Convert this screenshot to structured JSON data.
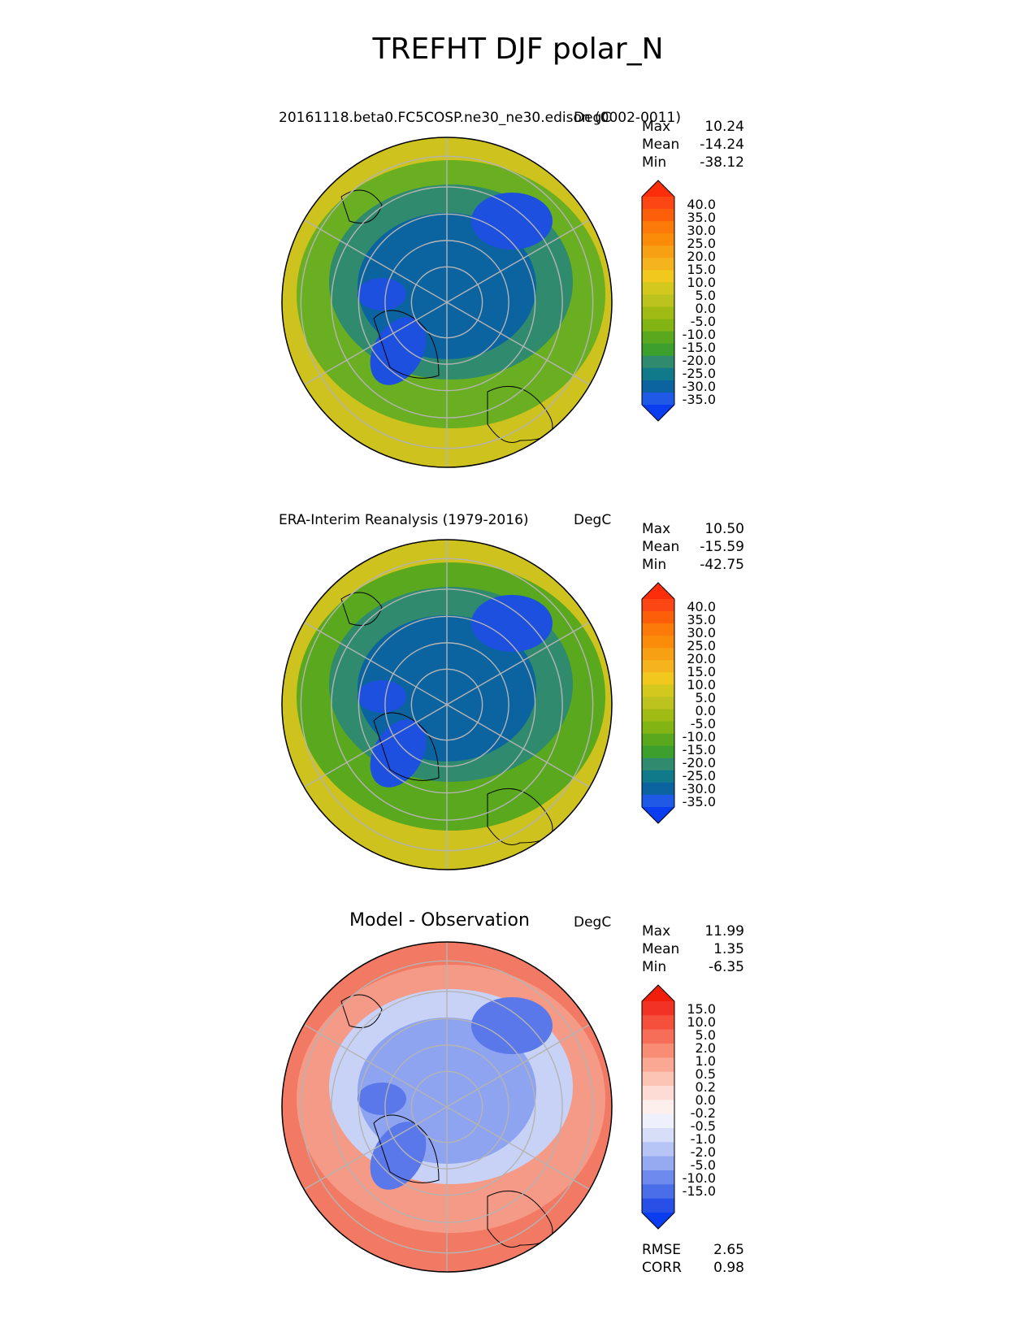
{
  "title": "TREFHT DJF polar_N",
  "panels": [
    {
      "id": "test",
      "title": "20161118.beta0.FC5COSP.ne30_ne30.edison (0002-0011)",
      "units": "DegC",
      "stats": [
        {
          "label": "Max",
          "value": "10.24"
        },
        {
          "label": "Mean",
          "value": "-14.24"
        },
        {
          "label": "Min",
          "value": "-38.12"
        }
      ],
      "colorbar": {
        "labels": [
          "40.0",
          "35.0",
          "30.0",
          "25.0",
          "20.0",
          "15.0",
          "10.0",
          "5.0",
          "0.0",
          "-5.0",
          "-10.0",
          "-15.0",
          "-20.0",
          "-25.0",
          "-30.0",
          "-35.0"
        ],
        "colors": [
          "#0a3cf0",
          "#1e5ae6",
          "#0b63a0",
          "#117a8a",
          "#2f8a6e",
          "#3ba02c",
          "#5aa81e",
          "#82b414",
          "#a0bc14",
          "#bcc21e",
          "#d2c81e",
          "#f0c81e",
          "#f5b41e",
          "#f8a014",
          "#fa8c0a",
          "#fc7a0a",
          "#fc5f0a",
          "#fc4614",
          "#fc2d0a"
        ]
      },
      "map_colors": {
        "outer": "#cdc21e",
        "mid": "#6aae22",
        "inner": "#2f8a6e",
        "core": "#0b63a0",
        "cold": "#1e50e0"
      }
    },
    {
      "id": "reference",
      "title": "ERA-Interim Reanalysis (1979-2016)",
      "units": "DegC",
      "stats": [
        {
          "label": "Max",
          "value": "10.50"
        },
        {
          "label": "Mean",
          "value": "-15.59"
        },
        {
          "label": "Min",
          "value": "-42.75"
        }
      ],
      "colorbar": {
        "labels": [
          "40.0",
          "35.0",
          "30.0",
          "25.0",
          "20.0",
          "15.0",
          "10.0",
          "5.0",
          "0.0",
          "-5.0",
          "-10.0",
          "-15.0",
          "-20.0",
          "-25.0",
          "-30.0",
          "-35.0"
        ],
        "colors": [
          "#0a3cf0",
          "#1e5ae6",
          "#0b63a0",
          "#117a8a",
          "#2f8a6e",
          "#3ba02c",
          "#5aa81e",
          "#82b414",
          "#a0bc14",
          "#bcc21e",
          "#d2c81e",
          "#f0c81e",
          "#f5b41e",
          "#f8a014",
          "#fa8c0a",
          "#fc7a0a",
          "#fc5f0a",
          "#fc4614",
          "#fc2d0a"
        ]
      },
      "map_colors": {
        "outer": "#cdc21e",
        "mid": "#5aa81e",
        "inner": "#2f8a6e",
        "core": "#0b63a0",
        "cold": "#1e50e0"
      }
    },
    {
      "id": "difference",
      "title": "Model - Observation",
      "units": "DegC",
      "stats": [
        {
          "label": "Max",
          "value": "11.99"
        },
        {
          "label": "Mean",
          "value": "1.35"
        },
        {
          "label": "Min",
          "value": "-6.35"
        }
      ],
      "colorbar": {
        "labels": [
          "15.0",
          "10.0",
          "5.0",
          "2.0",
          "1.0",
          "0.5",
          "0.2",
          "0.0",
          "-0.2",
          "-0.5",
          "-1.0",
          "-2.0",
          "-5.0",
          "-10.0",
          "-15.0"
        ],
        "colors": [
          "#0a3cf0",
          "#2850e6",
          "#4a6ee8",
          "#6e8aee",
          "#96aaf2",
          "#b6c4f6",
          "#d6def8",
          "#eef1fb",
          "#fcefec",
          "#fcdcd4",
          "#fcc4b4",
          "#faa894",
          "#f88c74",
          "#f66e58",
          "#f4503c",
          "#f23224",
          "#f01e0a"
        ]
      },
      "metrics": [
        {
          "label": "RMSE",
          "value": "2.65"
        },
        {
          "label": "CORR",
          "value": "0.98"
        }
      ],
      "map_colors": {
        "outer": "#f27a64",
        "mid": "#f59a86",
        "inner": "#c8d2f6",
        "core": "#8ea4f0",
        "cold": "#5a78ea"
      }
    }
  ]
}
